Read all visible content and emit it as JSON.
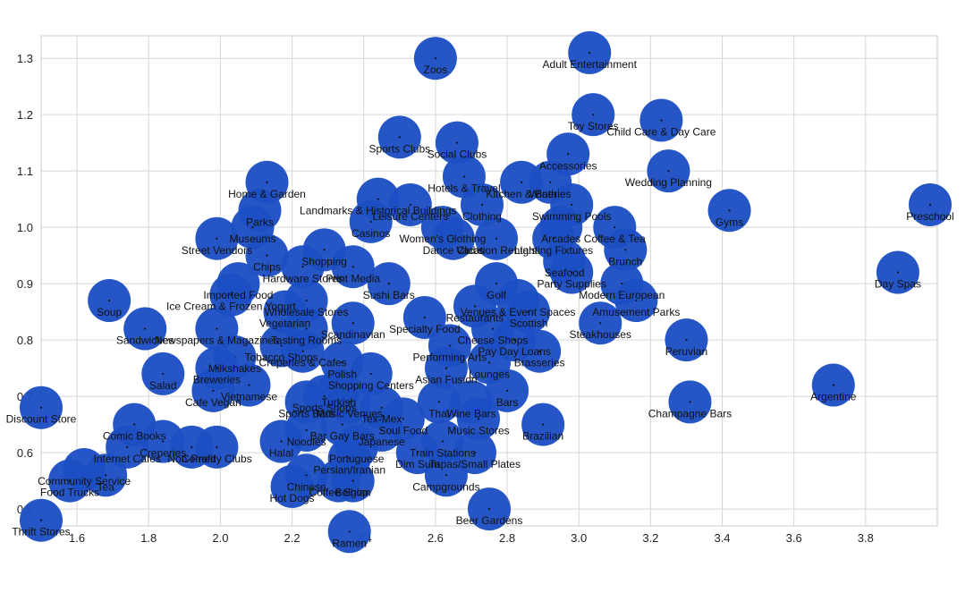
{
  "chart_data": {
    "type": "scatter",
    "title": "",
    "xlabel": "",
    "ylabel": "",
    "xlim": [
      1.5,
      4.0
    ],
    "ylim": [
      0.47,
      1.34
    ],
    "grid": true,
    "marker": "bubble",
    "color": "#1d4fc4",
    "x_ticks": [
      "1.6",
      "1.8",
      "2.0",
      "2.2",
      "2.4",
      "2.6",
      "2.8",
      "3.0",
      "3.2",
      "3.4",
      "3.6",
      "3.8"
    ],
    "y_ticks": [
      "0.5",
      "0.6",
      "0.7",
      "0.8",
      "0.9",
      "1.0",
      "1.1",
      "1.2",
      "1.3"
    ],
    "points": [
      {
        "label": "Zoos",
        "x": 2.6,
        "y": 1.3
      },
      {
        "label": "Adult Entertainment",
        "x": 3.03,
        "y": 1.31
      },
      {
        "label": "Toy Stores",
        "x": 3.04,
        "y": 1.2
      },
      {
        "label": "Child Care & Day Care",
        "x": 3.23,
        "y": 1.19
      },
      {
        "label": "Sports Clubs",
        "x": 2.5,
        "y": 1.16
      },
      {
        "label": "Social Clubs",
        "x": 2.66,
        "y": 1.15
      },
      {
        "label": "Accessories",
        "x": 2.97,
        "y": 1.13
      },
      {
        "label": "Wedding Planning",
        "x": 3.25,
        "y": 1.1
      },
      {
        "label": "Home & Garden",
        "x": 2.13,
        "y": 1.08
      },
      {
        "label": "Hotels & Travel",
        "x": 2.68,
        "y": 1.09
      },
      {
        "label": "Kitchen & Bath",
        "x": 2.84,
        "y": 1.08
      },
      {
        "label": "Wineries",
        "x": 2.92,
        "y": 1.08
      },
      {
        "label": "Gyms",
        "x": 3.42,
        "y": 1.03
      },
      {
        "label": "Preschool",
        "x": 3.98,
        "y": 1.04
      },
      {
        "label": "Landmarks & Historical Buildings",
        "x": 2.44,
        "y": 1.05
      },
      {
        "label": "Parks",
        "x": 2.11,
        "y": 1.03
      },
      {
        "label": "Swimming Pools",
        "x": 2.98,
        "y": 1.04
      },
      {
        "label": "Clothing",
        "x": 2.73,
        "y": 1.04
      },
      {
        "label": "Leisure Centers",
        "x": 2.53,
        "y": 1.04
      },
      {
        "label": "Museums",
        "x": 2.09,
        "y": 1.0
      },
      {
        "label": "Casinos",
        "x": 2.42,
        "y": 1.01
      },
      {
        "label": "Women's Clothing",
        "x": 2.62,
        "y": 1.0
      },
      {
        "label": "Arcades",
        "x": 2.95,
        "y": 1.0
      },
      {
        "label": "Coffee & Tea",
        "x": 3.1,
        "y": 1.0
      },
      {
        "label": "Street Vendors",
        "x": 1.99,
        "y": 0.98
      },
      {
        "label": "Dance Clubs",
        "x": 2.65,
        "y": 0.98
      },
      {
        "label": "Vacation Rentals",
        "x": 2.77,
        "y": 0.98
      },
      {
        "label": "Lighting Fixtures",
        "x": 2.93,
        "y": 0.98
      },
      {
        "label": "Brunch",
        "x": 3.13,
        "y": 0.96
      },
      {
        "label": "Shopping",
        "x": 2.29,
        "y": 0.96
      },
      {
        "label": "Chips",
        "x": 2.13,
        "y": 0.95
      },
      {
        "label": "Hardware Stores",
        "x": 2.23,
        "y": 0.93
      },
      {
        "label": "Print Media",
        "x": 2.37,
        "y": 0.93
      },
      {
        "label": "Sushi Bars",
        "x": 2.47,
        "y": 0.9
      },
      {
        "label": "Seafood",
        "x": 2.96,
        "y": 0.94
      },
      {
        "label": "Party Supplies",
        "x": 2.98,
        "y": 0.92
      },
      {
        "label": "Modern European",
        "x": 3.12,
        "y": 0.9
      },
      {
        "label": "Day Spas",
        "x": 3.89,
        "y": 0.92
      },
      {
        "label": "Imported Food",
        "x": 2.05,
        "y": 0.9
      },
      {
        "label": "Soup",
        "x": 1.69,
        "y": 0.87
      },
      {
        "label": "Ice Cream & Frozen Yogurt",
        "x": 2.03,
        "y": 0.88
      },
      {
        "label": "Wholesale Stores",
        "x": 2.24,
        "y": 0.87
      },
      {
        "label": "Golf",
        "x": 2.77,
        "y": 0.9
      },
      {
        "label": "Venues & Event Spaces",
        "x": 2.83,
        "y": 0.87
      },
      {
        "label": "Amusement Parks",
        "x": 3.16,
        "y": 0.87
      },
      {
        "label": "Vegetarian",
        "x": 2.18,
        "y": 0.85
      },
      {
        "label": "Specialty Food",
        "x": 2.57,
        "y": 0.84
      },
      {
        "label": "Restaurants",
        "x": 2.71,
        "y": 0.86
      },
      {
        "label": "Scottish",
        "x": 2.86,
        "y": 0.85
      },
      {
        "label": "Sandwiches",
        "x": 1.79,
        "y": 0.82
      },
      {
        "label": "Newspapers & Magazines",
        "x": 1.99,
        "y": 0.82
      },
      {
        "label": "Scandinavian",
        "x": 2.37,
        "y": 0.83
      },
      {
        "label": "Tasting Rooms",
        "x": 2.24,
        "y": 0.82
      },
      {
        "label": "Cheese Shops",
        "x": 2.76,
        "y": 0.82
      },
      {
        "label": "Pay Day Loans",
        "x": 2.82,
        "y": 0.8
      },
      {
        "label": "Steakhouses",
        "x": 3.06,
        "y": 0.83
      },
      {
        "label": "Peruvian",
        "x": 3.3,
        "y": 0.8
      },
      {
        "label": "Tobacco Shops",
        "x": 2.17,
        "y": 0.79
      },
      {
        "label": "Creperies & Cafes",
        "x": 2.23,
        "y": 0.78
      },
      {
        "label": "Brasseries",
        "x": 2.89,
        "y": 0.78
      },
      {
        "label": "Performing Arts",
        "x": 2.64,
        "y": 0.79
      },
      {
        "label": "Milkshakes",
        "x": 2.04,
        "y": 0.77
      },
      {
        "label": "Polish",
        "x": 2.34,
        "y": 0.76
      },
      {
        "label": "Lounges",
        "x": 2.75,
        "y": 0.76
      },
      {
        "label": "Salad",
        "x": 1.84,
        "y": 0.74
      },
      {
        "label": "Breweries",
        "x": 1.99,
        "y": 0.75
      },
      {
        "label": "Shopping Centers",
        "x": 2.42,
        "y": 0.74
      },
      {
        "label": "Asian Fusion",
        "x": 2.63,
        "y": 0.75
      },
      {
        "label": "Argentine",
        "x": 3.71,
        "y": 0.72
      },
      {
        "label": "Vietnamese",
        "x": 2.08,
        "y": 0.72
      },
      {
        "label": "Cafe Vegan",
        "x": 1.98,
        "y": 0.71
      },
      {
        "label": "Sports Bars",
        "x": 2.24,
        "y": 0.69
      },
      {
        "label": "Turkish",
        "x": 2.33,
        "y": 0.71
      },
      {
        "label": "Music Venues",
        "x": 2.36,
        "y": 0.69
      },
      {
        "label": "Sports Shops",
        "x": 2.29,
        "y": 0.7
      },
      {
        "label": "Thai",
        "x": 2.61,
        "y": 0.69
      },
      {
        "label": "Wine Bars",
        "x": 2.7,
        "y": 0.69
      },
      {
        "label": "Bars",
        "x": 2.8,
        "y": 0.71
      },
      {
        "label": "Champagne Bars",
        "x": 3.31,
        "y": 0.69
      },
      {
        "label": "Tex-Mex",
        "x": 2.45,
        "y": 0.68
      },
      {
        "label": "Comic Books",
        "x": 1.76,
        "y": 0.65
      },
      {
        "label": "Music Stores",
        "x": 2.72,
        "y": 0.66
      },
      {
        "label": "Brazilian",
        "x": 2.9,
        "y": 0.65
      },
      {
        "label": "Soul Food",
        "x": 2.51,
        "y": 0.66
      },
      {
        "label": "Noodles",
        "x": 2.24,
        "y": 0.64
      },
      {
        "label": "Bar Gay Bars",
        "x": 2.34,
        "y": 0.65
      },
      {
        "label": "Japanese",
        "x": 2.45,
        "y": 0.64
      },
      {
        "label": "Train Stations",
        "x": 2.62,
        "y": 0.62
      },
      {
        "label": "Halal",
        "x": 2.17,
        "y": 0.62
      },
      {
        "label": "Portuguese",
        "x": 2.38,
        "y": 0.61
      },
      {
        "label": "Creperies",
        "x": 1.84,
        "y": 0.62
      },
      {
        "label": "Non-Profit",
        "x": 1.92,
        "y": 0.61
      },
      {
        "label": "Comedy Clubs",
        "x": 1.99,
        "y": 0.61
      },
      {
        "label": "Internet Cafes",
        "x": 1.74,
        "y": 0.61
      },
      {
        "label": "Community Service",
        "x": 1.62,
        "y": 0.57
      },
      {
        "label": "Dim Sum",
        "x": 2.55,
        "y": 0.6
      },
      {
        "label": "Tapas/Small Plates",
        "x": 2.71,
        "y": 0.6
      },
      {
        "label": "Persian/Iranian",
        "x": 2.36,
        "y": 0.59
      },
      {
        "label": "Tea",
        "x": 1.68,
        "y": 0.56
      },
      {
        "label": "Food Trucks",
        "x": 1.58,
        "y": 0.55
      },
      {
        "label": "Hot Dogs",
        "x": 2.2,
        "y": 0.54
      },
      {
        "label": "Chinese",
        "x": 2.24,
        "y": 0.56
      },
      {
        "label": "Coffee Shop",
        "x": 2.33,
        "y": 0.55
      },
      {
        "label": "Belgian",
        "x": 2.37,
        "y": 0.55
      },
      {
        "label": "Campgrounds",
        "x": 2.63,
        "y": 0.56
      },
      {
        "label": "Discount Store",
        "x": 1.5,
        "y": 0.68
      },
      {
        "label": "Thrift Stores",
        "x": 1.5,
        "y": 0.48
      },
      {
        "label": "Beer Gardens",
        "x": 2.75,
        "y": 0.5
      },
      {
        "label": "Ramen",
        "x": 2.36,
        "y": 0.46
      }
    ]
  }
}
